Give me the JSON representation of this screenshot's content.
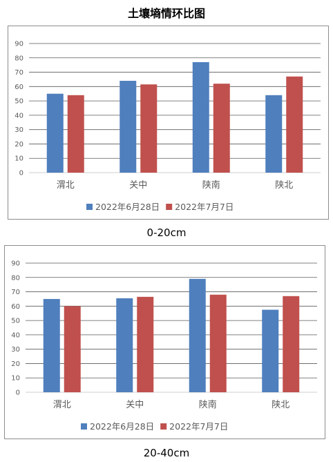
{
  "page": {
    "title": "土壤墒情环比图"
  },
  "colors": {
    "series1": "#4f7fbd",
    "series2": "#c0504d",
    "grid": "#595959",
    "text": "#595959"
  },
  "chart_data": [
    {
      "type": "bar",
      "caption": "0-20cm",
      "categories": [
        "渭北",
        "关中",
        "陕南",
        "陕北"
      ],
      "series": [
        {
          "name": "2022年6月28日",
          "values": [
            55,
            64,
            77,
            54
          ]
        },
        {
          "name": "2022年7月7日",
          "values": [
            54,
            61.5,
            62,
            67
          ]
        }
      ],
      "yticks": [
        "0",
        "10",
        "20",
        "30",
        "40",
        "50",
        "60",
        "70",
        "80",
        "90"
      ],
      "ylim": [
        0,
        90
      ],
      "grid": true,
      "legend": "bottom"
    },
    {
      "type": "bar",
      "caption": "20-40cm",
      "categories": [
        "渭北",
        "关中",
        "陕南",
        "陕北"
      ],
      "series": [
        {
          "name": "2022年6月28日",
          "values": [
            65,
            65.5,
            79,
            57.5
          ]
        },
        {
          "name": "2022年7月7日",
          "values": [
            60,
            66.5,
            68,
            67
          ]
        }
      ],
      "yticks": [
        "0",
        "10",
        "20",
        "30",
        "40",
        "50",
        "60",
        "70",
        "80",
        "90"
      ],
      "ylim": [
        0,
        90
      ],
      "grid": true,
      "legend": "bottom"
    }
  ]
}
